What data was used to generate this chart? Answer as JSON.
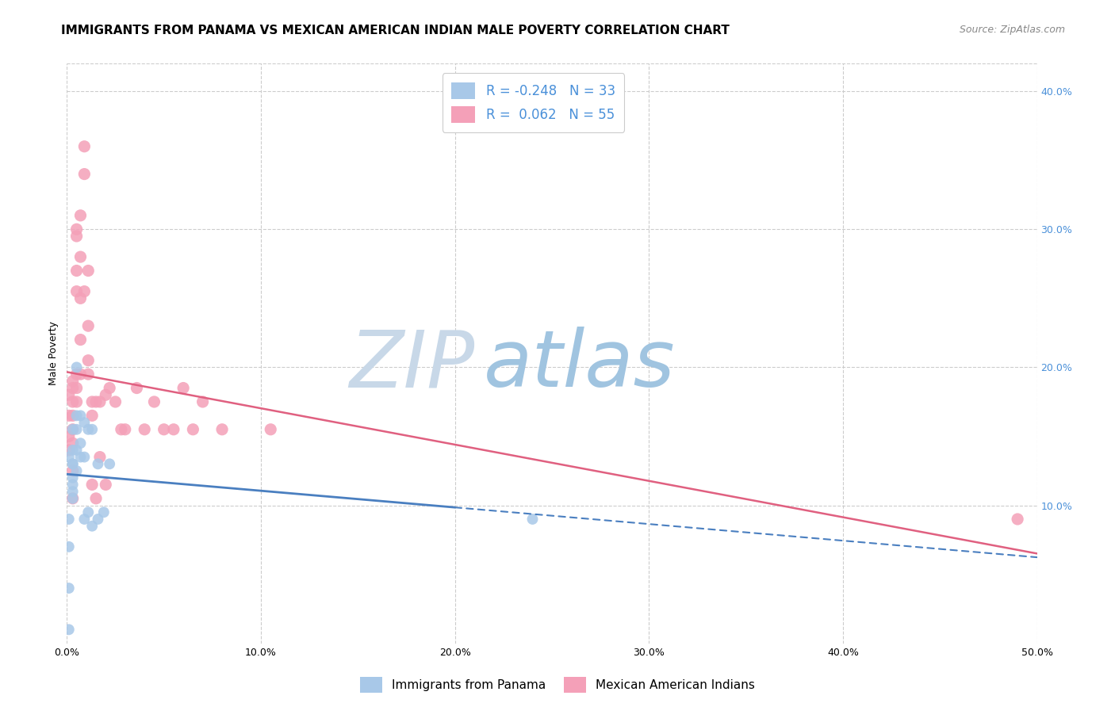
{
  "title": "IMMIGRANTS FROM PANAMA VS MEXICAN AMERICAN INDIAN MALE POVERTY CORRELATION CHART",
  "source": "Source: ZipAtlas.com",
  "ylabel": "Male Poverty",
  "xlim": [
    0.0,
    0.5
  ],
  "ylim": [
    0.0,
    0.42
  ],
  "xtick_labels": [
    "0.0%",
    "10.0%",
    "20.0%",
    "30.0%",
    "40.0%",
    "50.0%"
  ],
  "xtick_vals": [
    0.0,
    0.1,
    0.2,
    0.3,
    0.4,
    0.5
  ],
  "right_ytick_labels": [
    "10.0%",
    "20.0%",
    "30.0%",
    "40.0%"
  ],
  "right_ytick_vals": [
    0.1,
    0.2,
    0.3,
    0.4
  ],
  "color_blue": "#a8c8e8",
  "color_pink": "#f4a0b8",
  "color_blue_line": "#4a7fc0",
  "color_pink_line": "#e06080",
  "watermark_zip": "ZIP",
  "watermark_atlas": "atlas",
  "watermark_color_zip": "#c8d8e8",
  "watermark_color_atlas": "#a0c4e0",
  "panama_x": [
    0.001,
    0.001,
    0.001,
    0.001,
    0.001,
    0.003,
    0.003,
    0.003,
    0.003,
    0.003,
    0.003,
    0.003,
    0.003,
    0.005,
    0.005,
    0.005,
    0.005,
    0.005,
    0.007,
    0.007,
    0.007,
    0.009,
    0.009,
    0.009,
    0.011,
    0.011,
    0.013,
    0.013,
    0.016,
    0.016,
    0.019,
    0.022,
    0.24
  ],
  "panama_y": [
    0.135,
    0.09,
    0.07,
    0.04,
    0.01,
    0.155,
    0.14,
    0.13,
    0.13,
    0.12,
    0.115,
    0.11,
    0.105,
    0.2,
    0.165,
    0.155,
    0.14,
    0.125,
    0.165,
    0.145,
    0.135,
    0.16,
    0.135,
    0.09,
    0.155,
    0.095,
    0.155,
    0.085,
    0.13,
    0.09,
    0.095,
    0.13,
    0.09
  ],
  "mex_x": [
    0.001,
    0.001,
    0.001,
    0.001,
    0.003,
    0.003,
    0.003,
    0.003,
    0.003,
    0.003,
    0.003,
    0.003,
    0.005,
    0.005,
    0.005,
    0.005,
    0.005,
    0.005,
    0.005,
    0.007,
    0.007,
    0.007,
    0.007,
    0.007,
    0.009,
    0.009,
    0.009,
    0.011,
    0.011,
    0.011,
    0.011,
    0.013,
    0.013,
    0.013,
    0.015,
    0.015,
    0.017,
    0.017,
    0.02,
    0.02,
    0.022,
    0.025,
    0.028,
    0.03,
    0.036,
    0.04,
    0.045,
    0.05,
    0.055,
    0.06,
    0.065,
    0.07,
    0.08,
    0.105,
    0.49
  ],
  "mex_y": [
    0.18,
    0.165,
    0.15,
    0.14,
    0.19,
    0.185,
    0.175,
    0.165,
    0.155,
    0.145,
    0.125,
    0.105,
    0.3,
    0.295,
    0.27,
    0.255,
    0.195,
    0.185,
    0.175,
    0.31,
    0.28,
    0.25,
    0.22,
    0.195,
    0.36,
    0.34,
    0.255,
    0.27,
    0.23,
    0.205,
    0.195,
    0.175,
    0.165,
    0.115,
    0.175,
    0.105,
    0.175,
    0.135,
    0.18,
    0.115,
    0.185,
    0.175,
    0.155,
    0.155,
    0.185,
    0.155,
    0.175,
    0.155,
    0.155,
    0.185,
    0.155,
    0.175,
    0.155,
    0.155,
    0.09
  ],
  "blue_line_solid_end": 0.2,
  "blue_line_x0": 0.0,
  "blue_line_x1": 0.5,
  "pink_line_x0": 0.0,
  "pink_line_x1": 0.5,
  "title_fontsize": 11,
  "axis_label_fontsize": 9,
  "tick_fontsize": 9,
  "legend_fontsize": 12
}
